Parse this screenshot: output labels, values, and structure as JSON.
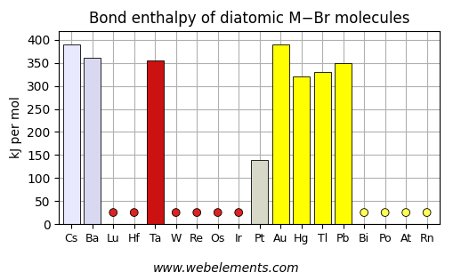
{
  "chart_data": {
    "type": "bar",
    "title": "Bond enthalpy of diatomic M−Br molecules",
    "y_label": "kJ per mol",
    "categories": [
      "Cs",
      "Ba",
      "Lu",
      "Hf",
      "Ta",
      "W",
      "Re",
      "Os",
      "Ir",
      "Pt",
      "Au",
      "Hg",
      "Tl",
      "Pb",
      "Bi",
      "Po",
      "At",
      "Rn"
    ],
    "series": [
      {
        "type": "bar",
        "values": [
          390,
          362,
          null,
          null,
          355,
          null,
          null,
          null,
          null,
          140,
          390,
          320,
          330,
          350,
          null,
          null,
          null,
          null
        ],
        "colors": [
          "#e8e8ff",
          "#d8d8f0",
          "#cc1111",
          "#cc1111",
          "#cc1111",
          "#cc1111",
          "#cc1111",
          "#cc1111",
          "#cc1111",
          "#d8d8c8",
          "#ffff00",
          "#ffff00",
          "#ffff00",
          "#ffff00",
          "#ffff00",
          "#ffff00",
          "#ffff00",
          "#ffff00"
        ]
      },
      {
        "type": "scatter",
        "values": [
          null,
          null,
          25,
          25,
          null,
          25,
          25,
          25,
          25,
          null,
          null,
          null,
          null,
          null,
          25,
          25,
          25,
          25
        ],
        "colors": [
          "#aaaaaa",
          "#aaaaaa",
          "#dd2222",
          "#dd2222",
          "#dd2222",
          "#dd2222",
          "#dd2222",
          "#dd2222",
          "#dd2222",
          "#ddddaa",
          "#ffff55",
          "#ffff55",
          "#ffff55",
          "#ffff55",
          "#ffff55",
          "#ffff55",
          "#ffff55",
          "#ffff55"
        ]
      }
    ],
    "ylim": [
      0,
      420
    ],
    "yticks": [
      0,
      50,
      100,
      150,
      200,
      250,
      300,
      350,
      400
    ],
    "grid": true,
    "annotations": [
      "www.webelements.com"
    ]
  }
}
